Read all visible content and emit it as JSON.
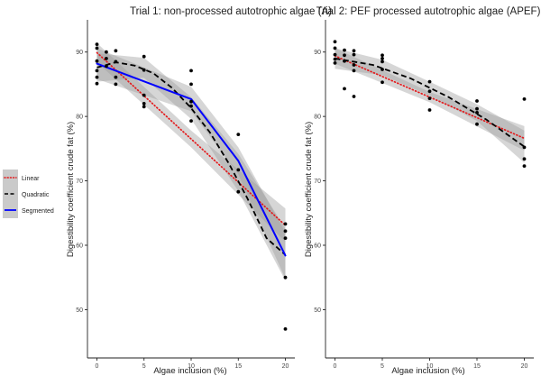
{
  "chart_data": [
    {
      "type": "scatter",
      "title": "Trial 1: non-processed autotrophic algae (A)",
      "xlabel": "Algae inclusion (%)",
      "ylabel": "Digestibility coefficient crude fat (%)",
      "xlim": [
        -1,
        21
      ],
      "ylim": [
        42.5,
        95
      ],
      "xticks": [
        0,
        5,
        10,
        15,
        20
      ],
      "yticks": [
        50,
        60,
        70,
        80,
        90
      ],
      "points": [
        [
          0,
          91.2
        ],
        [
          0,
          90.6
        ],
        [
          0,
          88.6
        ],
        [
          0,
          87.1
        ],
        [
          0,
          86.1
        ],
        [
          0,
          85.1
        ],
        [
          1,
          90.0
        ],
        [
          1,
          89.0
        ],
        [
          1,
          87.8
        ],
        [
          2,
          90.2
        ],
        [
          2,
          88.5
        ],
        [
          2,
          86.1
        ],
        [
          2,
          85.0
        ],
        [
          5,
          89.3
        ],
        [
          5,
          87.2
        ],
        [
          5,
          83.3
        ],
        [
          5,
          82.0
        ],
        [
          5,
          81.5
        ],
        [
          10,
          87.1
        ],
        [
          10,
          85.0
        ],
        [
          10,
          82.3
        ],
        [
          10,
          81.6
        ],
        [
          10,
          79.3
        ],
        [
          15,
          77.2
        ],
        [
          15,
          71.7
        ],
        [
          15,
          68.3
        ],
        [
          20,
          63.3
        ],
        [
          20,
          62.2
        ],
        [
          20,
          61.1
        ],
        [
          20,
          55.0
        ],
        [
          20,
          47.0
        ]
      ],
      "fits": {
        "linear": {
          "x": [
            0,
            20
          ],
          "y": [
            89.9,
            63.1
          ]
        },
        "quadratic": {
          "x": [
            0,
            2,
            4,
            6,
            8,
            10,
            12,
            14,
            16,
            18,
            20
          ],
          "y": [
            87.6,
            88.4,
            87.9,
            86.7,
            84.4,
            81.3,
            77.5,
            72.7,
            67.2,
            61.1,
            58.5
          ]
        },
        "segmented": {
          "x": [
            0,
            10,
            15,
            20
          ],
          "y": [
            88.2,
            82.7,
            73.1,
            58.4
          ]
        }
      },
      "bands": {
        "linear": {
          "x": [
            0,
            10,
            20
          ],
          "lower": [
            88.4,
            75.2,
            60.5
          ],
          "upper": [
            91.4,
            77.8,
            65.7
          ]
        },
        "quadratic": {
          "x": [
            0,
            5,
            10,
            15,
            20
          ],
          "lower": [
            85.4,
            86.0,
            79.6,
            68.4,
            54.5
          ],
          "upper": [
            89.8,
            89.1,
            83.0,
            74.2,
            62.6
          ]
        },
        "segmented": {
          "x": [
            0,
            10,
            15,
            20
          ],
          "lower": [
            85.8,
            80.8,
            71.0,
            54.8
          ],
          "upper": [
            90.6,
            84.6,
            75.2,
            62.0
          ]
        }
      }
    },
    {
      "type": "scatter",
      "title": "Trial 2: PEF processed autotrophic algae (APEF)",
      "xlabel": "Algae inclusion (%)",
      "ylabel": "Digestibility coefficient crude fat (%)",
      "xlim": [
        -1,
        21
      ],
      "ylim": [
        42.5,
        95
      ],
      "xticks": [
        0,
        5,
        10,
        15,
        20
      ],
      "yticks": [
        50,
        60,
        70,
        80,
        90
      ],
      "points": [
        [
          0,
          91.6
        ],
        [
          0,
          90.6
        ],
        [
          0,
          89.6
        ],
        [
          0,
          88.9
        ],
        [
          0,
          88.3
        ],
        [
          1,
          90.3
        ],
        [
          1,
          89.5
        ],
        [
          1,
          88.6
        ],
        [
          1,
          84.3
        ],
        [
          2,
          90.2
        ],
        [
          2,
          89.6
        ],
        [
          2,
          88.0
        ],
        [
          2,
          87.1
        ],
        [
          2,
          83.1
        ],
        [
          5,
          89.5
        ],
        [
          5,
          89.0
        ],
        [
          5,
          88.5
        ],
        [
          5,
          87.3
        ],
        [
          5,
          85.3
        ],
        [
          10,
          85.4
        ],
        [
          10,
          83.9
        ],
        [
          10,
          82.8
        ],
        [
          10,
          81.0
        ],
        [
          15,
          82.4
        ],
        [
          15,
          81.2
        ],
        [
          15,
          80.6
        ],
        [
          15,
          78.8
        ],
        [
          20,
          82.7
        ],
        [
          20,
          75.2
        ],
        [
          20,
          73.4
        ],
        [
          20,
          72.3
        ]
      ],
      "fits": {
        "linear": {
          "x": [
            0,
            20
          ],
          "y": [
            89.4,
            76.6
          ]
        },
        "quadratic": {
          "x": [
            0,
            4,
            8,
            12,
            16,
            20
          ],
          "y": [
            89.0,
            88.0,
            85.9,
            83.0,
            79.5,
            75.3
          ]
        }
      },
      "bands": {
        "linear": {
          "x": [
            0,
            10,
            20
          ],
          "lower": [
            88.2,
            82.2,
            74.7
          ],
          "upper": [
            90.6,
            83.8,
            78.5
          ]
        },
        "quadratic": {
          "x": [
            0,
            5,
            10,
            15,
            20
          ],
          "lower": [
            87.4,
            86.4,
            83.2,
            79.3,
            72.8
          ],
          "upper": [
            90.6,
            88.8,
            85.4,
            81.9,
            77.8
          ]
        }
      }
    }
  ],
  "legend": {
    "items": [
      {
        "label": "Linear",
        "color": "#e41a1c",
        "style": "dotted"
      },
      {
        "label": "Quadratic",
        "color": "#000000",
        "style": "dashed"
      },
      {
        "label": "Segmented",
        "color": "#0000ff",
        "style": "solid"
      }
    ]
  },
  "colors": {
    "points": "#000000",
    "band": "#9e9e9e"
  }
}
